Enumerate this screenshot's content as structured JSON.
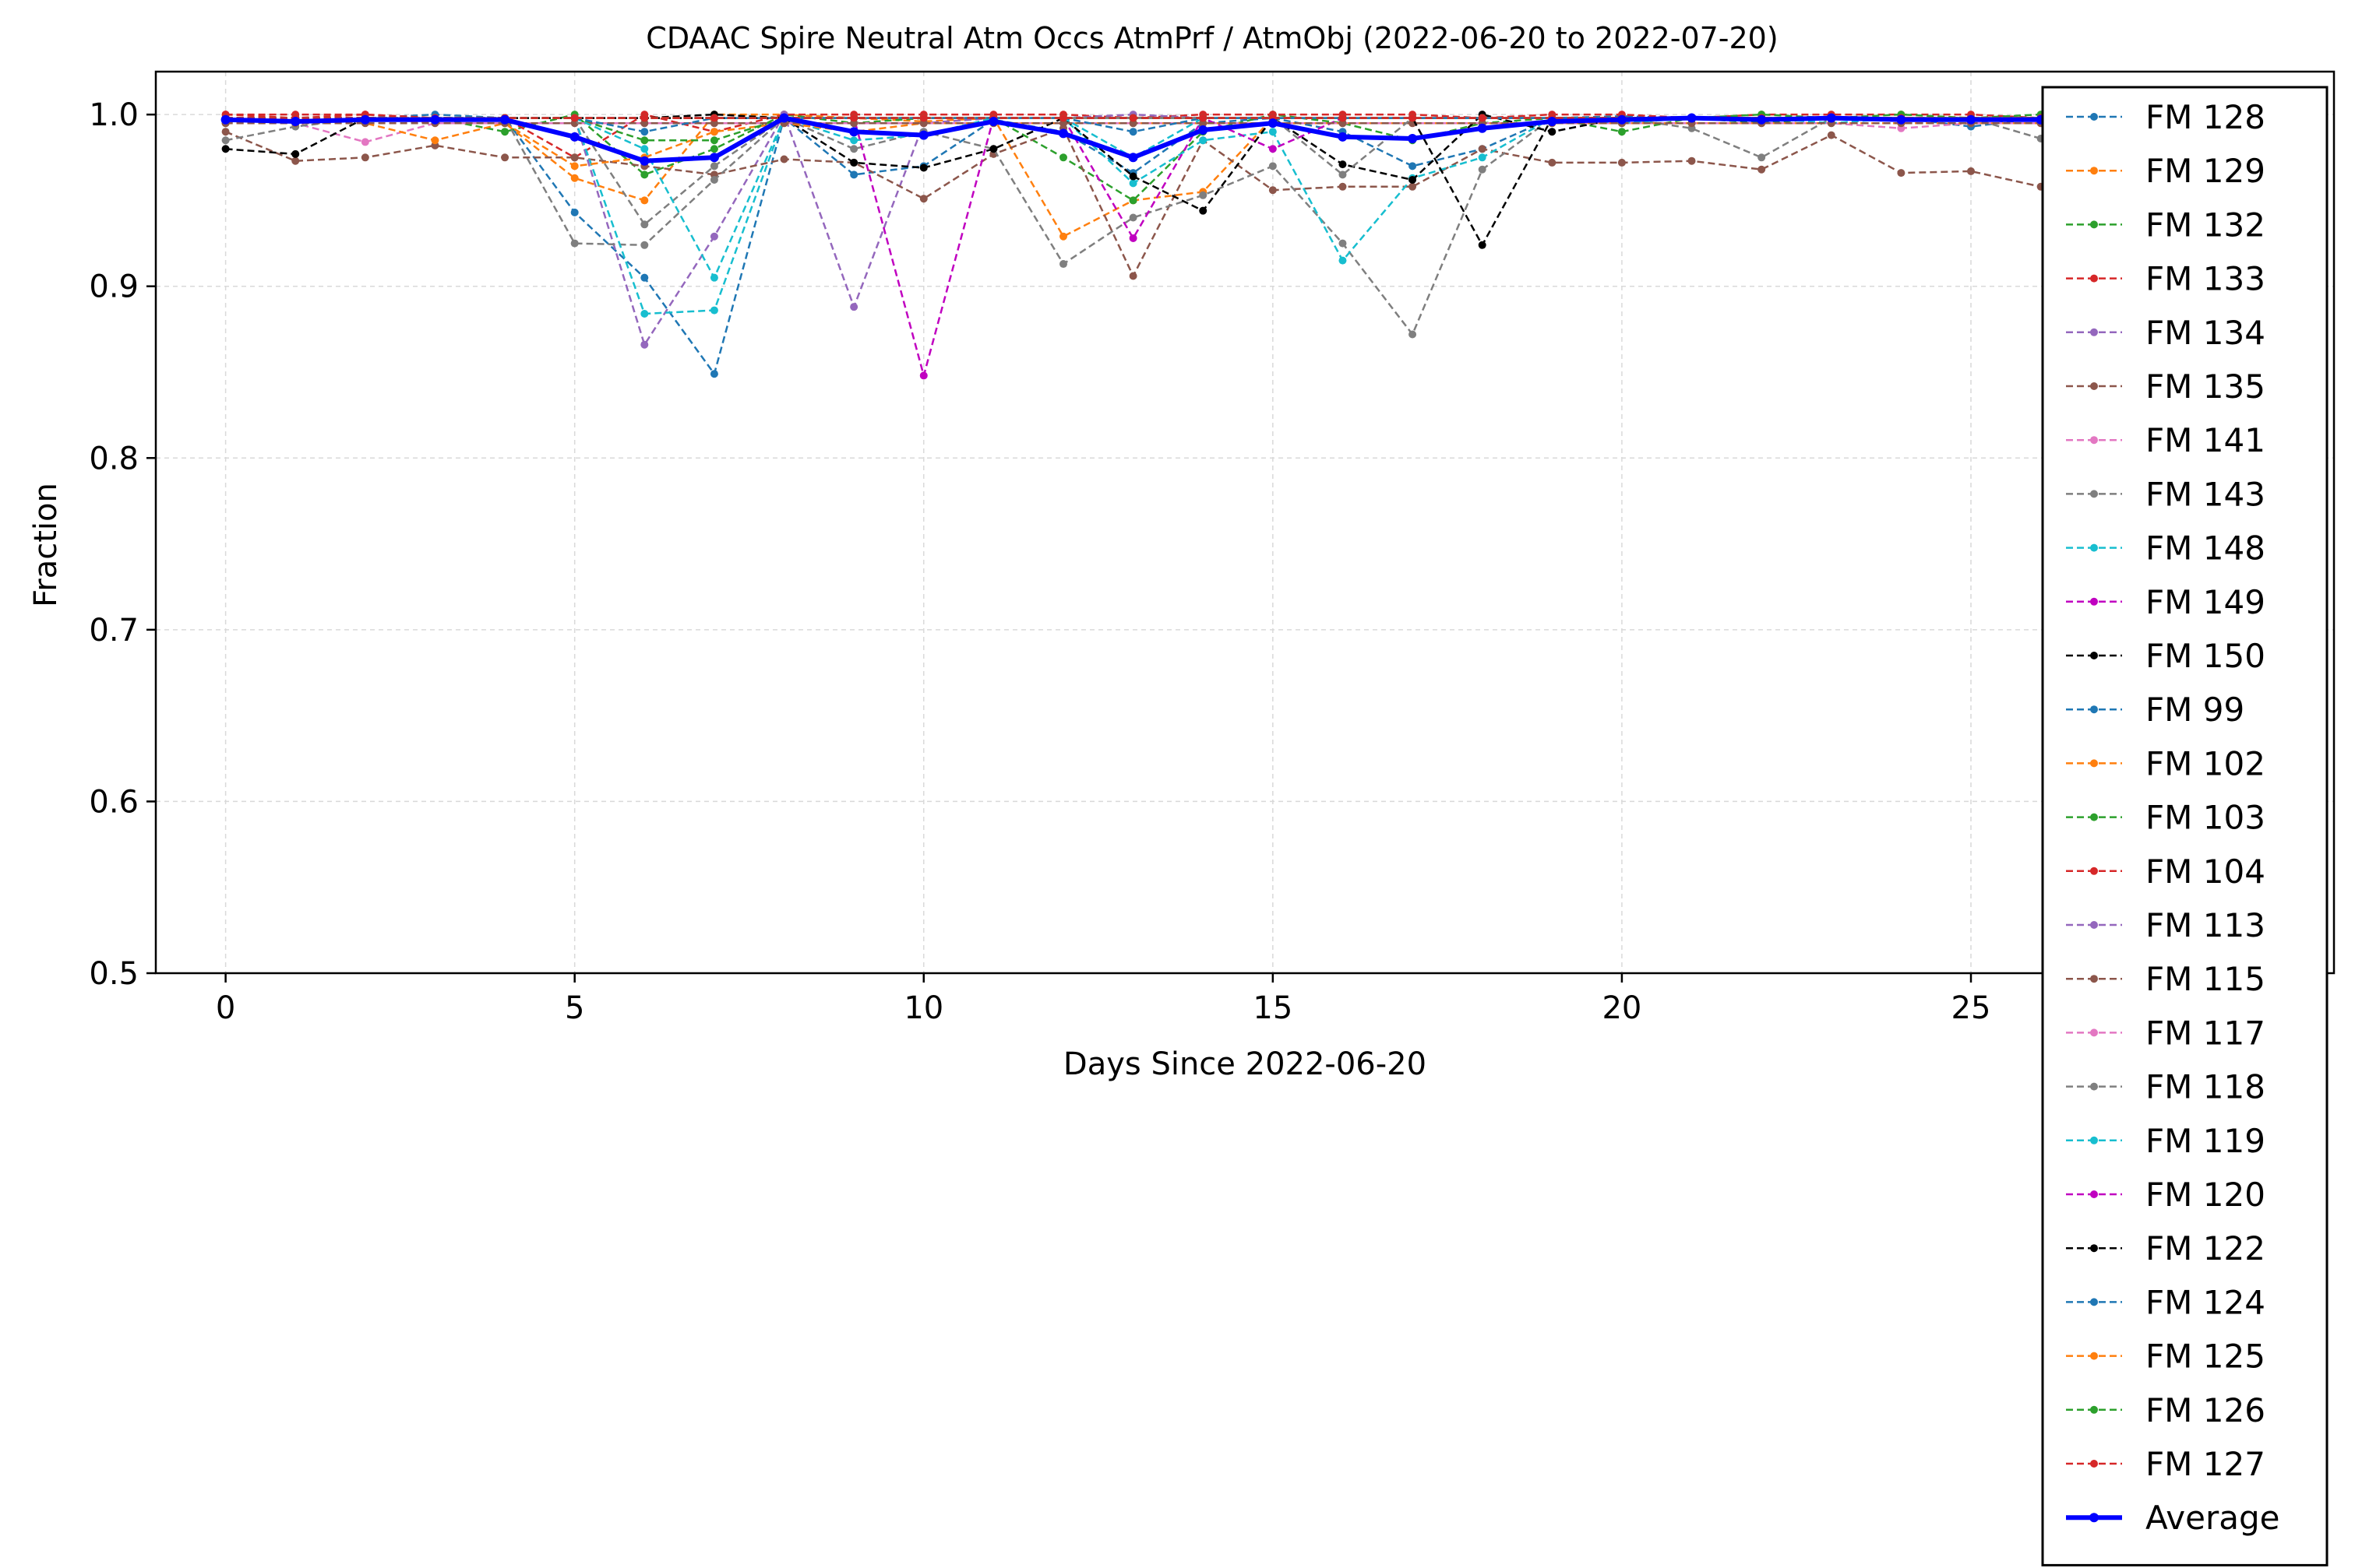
{
  "chart_data": {
    "type": "line",
    "title": "CDAAC Spire Neutral Atm Occs AtmPrf / AtmObj (2022-06-20 to 2022-07-20)",
    "xlabel": "Days Since 2022-06-20",
    "ylabel": "Fraction",
    "xlim": [
      -1,
      30.2
    ],
    "ylim": [
      0.5,
      1.025
    ],
    "xticks": [
      0,
      5,
      10,
      15,
      20,
      25
    ],
    "yticks": [
      0.5,
      0.6,
      0.7,
      0.8,
      0.9,
      1.0
    ],
    "ytick_labels": [
      "0.5",
      "0.6",
      "0.7",
      "0.8",
      "0.9",
      "1.0"
    ],
    "grid": true,
    "legend_position": "right, overlapping plot edge",
    "x": [
      0,
      1,
      2,
      3,
      4,
      5,
      6,
      7,
      8,
      9,
      10,
      11,
      12,
      13,
      14,
      15,
      16,
      17,
      18,
      19,
      20,
      21,
      22,
      23,
      24,
      25,
      26,
      27,
      28,
      29
    ],
    "series": [
      {
        "name": "FM 128",
        "color": "#1f77b4",
        "values": [
          0.995,
          0.995,
          0.998,
          1.0,
          0.998,
          0.943,
          0.905,
          0.849,
          0.998,
          0.965,
          0.97,
          0.997,
          0.99,
          0.966,
          0.995,
          0.998,
          0.99,
          0.97,
          0.98,
          0.998,
          0.999,
          0.998,
          0.998,
          0.998,
          0.998,
          0.993,
          0.998,
          0.998,
          0.998,
          0.998
        ]
      },
      {
        "name": "FM 129",
        "color": "#ff7f0e",
        "values": [
          0.998,
          0.996,
          0.998,
          0.995,
          0.995,
          0.963,
          0.95,
          1.0,
          1.0,
          0.998,
          0.996,
          0.998,
          0.929,
          0.95,
          0.955,
          0.998,
          0.998,
          0.998,
          0.998,
          0.998,
          0.998,
          0.998,
          0.998,
          0.998,
          0.998,
          0.998,
          0.998,
          0.998,
          0.998,
          0.998
        ]
      },
      {
        "name": "FM 132",
        "color": "#2ca02c",
        "values": [
          0.998,
          0.997,
          0.998,
          0.998,
          0.99,
          1.0,
          0.965,
          0.98,
          1.0,
          0.995,
          0.998,
          0.998,
          0.975,
          0.95,
          0.99,
          1.0,
          0.995,
          0.985,
          0.995,
          0.998,
          0.99,
          0.998,
          0.995,
          0.998,
          0.998,
          0.998,
          0.998,
          0.998,
          0.998,
          0.998
        ]
      },
      {
        "name": "FM 133",
        "color": "#d62728",
        "values": [
          1.0,
          1.0,
          1.0,
          0.998,
          0.998,
          0.975,
          1.0,
          0.99,
          1.0,
          1.0,
          1.0,
          1.0,
          1.0,
          0.998,
          1.0,
          1.0,
          1.0,
          1.0,
          0.998,
          1.0,
          1.0,
          0.998,
          1.0,
          1.0,
          1.0,
          1.0,
          0.998,
          0.998,
          0.998,
          0.998
        ]
      },
      {
        "name": "FM 134",
        "color": "#9467bd",
        "values": [
          0.998,
          0.998,
          0.998,
          0.998,
          0.998,
          0.998,
          0.866,
          0.929,
          1.0,
          0.888,
          0.995,
          0.998,
          0.998,
          1.0,
          0.998,
          0.998,
          0.998,
          0.998,
          0.998,
          0.998,
          0.998,
          0.998,
          0.998,
          0.998,
          0.998,
          0.998,
          0.998,
          0.998,
          0.998,
          0.998
        ]
      },
      {
        "name": "FM 135",
        "color": "#8c564b",
        "values": [
          0.99,
          0.973,
          0.975,
          0.982,
          0.975,
          0.975,
          0.97,
          0.965,
          0.974,
          0.972,
          0.951,
          0.977,
          0.992,
          0.906,
          0.985,
          0.956,
          0.958,
          0.958,
          0.98,
          0.972,
          0.972,
          0.973,
          0.968,
          0.988,
          0.966,
          0.967,
          0.958,
          0.957,
          0.957,
          0.957
        ]
      },
      {
        "name": "FM 141",
        "color": "#e377c2",
        "values": [
          0.995,
          0.995,
          0.984,
          0.995,
          0.995,
          0.995,
          0.995,
          0.995,
          0.995,
          0.995,
          0.995,
          0.995,
          0.995,
          0.995,
          0.995,
          0.995,
          0.995,
          0.995,
          0.995,
          0.995,
          0.995,
          0.995,
          0.995,
          0.995,
          0.992,
          0.995,
          0.995,
          0.995,
          0.995,
          0.995
        ]
      },
      {
        "name": "FM 143",
        "color": "#7f7f7f",
        "values": [
          0.985,
          0.993,
          0.998,
          0.998,
          0.998,
          0.925,
          0.924,
          0.962,
          0.998,
          0.98,
          0.99,
          0.98,
          0.913,
          0.94,
          0.953,
          0.97,
          0.925,
          0.872,
          0.968,
          0.998,
          0.998,
          0.992,
          0.975,
          0.998,
          0.998,
          0.998,
          0.986,
          0.987,
          0.987,
          0.987
        ]
      },
      {
        "name": "FM 148",
        "color": "#17becf",
        "values": [
          0.997,
          0.998,
          0.998,
          0.998,
          0.998,
          0.998,
          0.884,
          0.886,
          0.998,
          0.985,
          0.988,
          0.998,
          0.998,
          0.96,
          0.985,
          0.99,
          0.915,
          0.963,
          0.975,
          0.998,
          0.995,
          0.998,
          0.998,
          0.995,
          0.998,
          0.998,
          0.998,
          0.998,
          0.998,
          0.998
        ]
      },
      {
        "name": "FM 149",
        "color": "#c000c0",
        "values": [
          0.998,
          0.998,
          0.998,
          0.998,
          0.998,
          0.998,
          0.998,
          0.998,
          0.998,
          0.998,
          0.848,
          0.998,
          0.998,
          0.928,
          0.998,
          0.98,
          0.998,
          0.998,
          0.998,
          0.998,
          0.998,
          0.998,
          0.998,
          0.998,
          0.998,
          0.998,
          0.998,
          0.998,
          0.998,
          0.998
        ]
      },
      {
        "name": "FM 150",
        "color": "#000000",
        "values": [
          0.98,
          0.977,
          0.998,
          0.998,
          0.998,
          0.998,
          0.998,
          0.998,
          0.998,
          0.972,
          0.969,
          0.98,
          0.998,
          0.964,
          0.944,
          0.998,
          0.971,
          0.962,
          1.0,
          0.99,
          0.998,
          0.998,
          0.998,
          0.998,
          0.998,
          0.998,
          0.998,
          0.998,
          0.998,
          0.998
        ]
      },
      {
        "name": "FM 99",
        "color": "#1f77b4",
        "values": [
          0.998,
          0.998,
          0.998,
          0.998,
          0.998,
          0.998,
          0.998,
          0.998,
          0.998,
          0.998,
          0.998,
          0.998,
          0.998,
          0.998,
          0.998,
          0.998,
          0.998,
          0.998,
          0.998,
          0.998,
          0.998,
          0.998,
          0.998,
          0.998,
          0.998,
          0.998,
          0.998,
          0.998,
          0.998,
          0.998
        ]
      },
      {
        "name": "FM 102",
        "color": "#ff7f0e",
        "values": [
          0.995,
          0.995,
          0.995,
          0.985,
          0.995,
          0.97,
          0.975,
          0.99,
          0.995,
          0.99,
          0.995,
          0.995,
          0.995,
          0.995,
          0.995,
          0.995,
          0.995,
          0.995,
          0.995,
          0.995,
          0.995,
          0.995,
          0.995,
          0.995,
          0.995,
          0.995,
          0.995,
          0.995,
          0.995,
          0.995
        ]
      },
      {
        "name": "FM 103",
        "color": "#2ca02c",
        "values": [
          0.998,
          0.998,
          0.998,
          0.998,
          0.998,
          0.998,
          0.985,
          0.985,
          0.998,
          0.998,
          0.998,
          0.998,
          0.998,
          0.998,
          0.998,
          0.998,
          0.998,
          0.998,
          0.998,
          0.998,
          0.998,
          0.998,
          0.998,
          0.998,
          0.998,
          0.998,
          0.998,
          0.998,
          0.998,
          0.998
        ]
      },
      {
        "name": "FM 104",
        "color": "#d62728",
        "values": [
          1.0,
          0.998,
          1.0,
          0.998,
          0.998,
          0.998,
          0.998,
          0.998,
          0.998,
          0.998,
          0.998,
          0.998,
          0.998,
          0.998,
          0.998,
          0.998,
          0.998,
          0.998,
          0.998,
          0.998,
          0.998,
          0.998,
          0.998,
          0.998,
          0.998,
          0.998,
          0.998,
          0.998,
          0.998,
          0.998
        ]
      },
      {
        "name": "FM 113",
        "color": "#9467bd",
        "values": [
          0.998,
          0.998,
          0.998,
          0.998,
          0.998,
          0.998,
          0.998,
          0.998,
          0.998,
          0.998,
          0.998,
          0.998,
          0.998,
          0.998,
          0.998,
          0.998,
          0.998,
          0.998,
          0.998,
          0.998,
          0.998,
          0.998,
          0.998,
          0.998,
          0.998,
          0.998,
          0.998,
          0.998,
          0.998,
          0.998
        ]
      },
      {
        "name": "FM 115",
        "color": "#8c564b",
        "values": [
          0.995,
          0.995,
          0.995,
          0.995,
          0.995,
          0.995,
          0.995,
          0.995,
          0.995,
          0.995,
          0.995,
          0.995,
          0.995,
          0.995,
          0.995,
          0.995,
          0.995,
          0.995,
          0.995,
          0.995,
          0.995,
          0.995,
          0.995,
          0.995,
          0.995,
          0.995,
          0.995,
          0.995,
          0.995,
          0.995
        ]
      },
      {
        "name": "FM 117",
        "color": "#e377c2",
        "values": [
          0.998,
          0.998,
          0.998,
          0.998,
          0.998,
          0.998,
          0.998,
          0.998,
          0.998,
          0.998,
          0.998,
          0.998,
          0.998,
          0.998,
          0.998,
          0.998,
          0.998,
          0.998,
          0.998,
          0.998,
          0.998,
          0.998,
          0.998,
          0.998,
          0.998,
          0.998,
          0.998,
          0.998,
          0.998,
          0.998
        ]
      },
      {
        "name": "FM 118",
        "color": "#7f7f7f",
        "values": [
          0.998,
          0.998,
          0.998,
          0.998,
          0.998,
          0.998,
          0.936,
          0.97,
          0.998,
          0.998,
          0.998,
          0.998,
          0.998,
          0.998,
          0.998,
          0.998,
          0.965,
          0.998,
          0.998,
          0.998,
          0.998,
          0.998,
          0.998,
          0.998,
          0.998,
          0.998,
          0.998,
          0.998,
          0.998,
          0.998
        ]
      },
      {
        "name": "FM 119",
        "color": "#17becf",
        "values": [
          0.998,
          0.998,
          0.998,
          0.998,
          0.998,
          0.998,
          0.98,
          0.905,
          0.998,
          0.998,
          0.998,
          0.998,
          0.998,
          0.975,
          0.998,
          0.998,
          0.998,
          0.998,
          0.998,
          0.998,
          0.998,
          0.998,
          0.998,
          0.998,
          0.998,
          0.998,
          0.998,
          0.998,
          0.998,
          0.998
        ]
      },
      {
        "name": "FM 120",
        "color": "#c000c0",
        "values": [
          0.998,
          0.998,
          0.998,
          0.998,
          0.998,
          0.998,
          0.998,
          0.998,
          0.998,
          0.998,
          0.998,
          0.998,
          0.998,
          0.998,
          0.998,
          0.998,
          0.998,
          0.998,
          0.998,
          0.998,
          0.998,
          0.998,
          0.998,
          0.998,
          0.998,
          0.998,
          0.998,
          0.998,
          0.998,
          0.998
        ]
      },
      {
        "name": "FM 122",
        "color": "#000000",
        "values": [
          0.998,
          0.998,
          0.998,
          0.998,
          0.998,
          0.998,
          0.998,
          1.0,
          0.998,
          0.998,
          0.998,
          0.998,
          0.998,
          0.998,
          0.998,
          0.998,
          0.998,
          0.998,
          0.924,
          0.998,
          0.998,
          0.998,
          0.998,
          0.998,
          0.998,
          0.998,
          0.998,
          0.998,
          0.998,
          0.998
        ]
      },
      {
        "name": "FM 124",
        "color": "#1f77b4",
        "values": [
          0.998,
          0.998,
          0.998,
          0.998,
          0.998,
          0.998,
          0.99,
          0.998,
          0.998,
          0.998,
          0.998,
          0.998,
          0.998,
          0.99,
          0.998,
          0.998,
          0.998,
          0.998,
          0.998,
          0.998,
          0.998,
          0.998,
          0.998,
          0.998,
          0.998,
          0.998,
          0.998,
          0.998,
          0.998,
          0.998
        ]
      },
      {
        "name": "FM 125",
        "color": "#ff7f0e",
        "values": [
          0.998,
          0.998,
          0.998,
          0.998,
          0.998,
          0.998,
          0.998,
          0.998,
          0.998,
          0.998,
          0.998,
          0.998,
          0.998,
          0.998,
          0.998,
          0.998,
          0.998,
          0.998,
          0.998,
          0.998,
          0.998,
          0.998,
          0.998,
          0.998,
          0.998,
          0.998,
          0.998,
          0.998,
          0.998,
          0.998
        ]
      },
      {
        "name": "FM 126",
        "color": "#2ca02c",
        "values": [
          0.998,
          0.998,
          0.998,
          0.998,
          0.998,
          0.998,
          0.998,
          0.998,
          0.998,
          0.998,
          0.998,
          0.998,
          0.998,
          0.998,
          0.998,
          0.998,
          0.998,
          0.998,
          0.998,
          0.998,
          0.998,
          0.998,
          1.0,
          0.998,
          1.0,
          0.998,
          1.0,
          0.998,
          0.998,
          0.998
        ]
      },
      {
        "name": "FM 127",
        "color": "#d62728",
        "values": [
          0.998,
          0.998,
          0.998,
          0.998,
          0.998,
          0.998,
          0.998,
          0.998,
          0.998,
          0.998,
          0.998,
          0.998,
          0.998,
          0.998,
          0.998,
          0.998,
          0.998,
          0.998,
          0.998,
          0.998,
          0.998,
          0.998,
          0.998,
          0.998,
          0.998,
          0.998,
          0.998,
          0.998,
          0.998,
          0.998
        ]
      }
    ],
    "average": {
      "name": "Average",
      "color": "#0000ff",
      "values": [
        0.997,
        0.996,
        0.997,
        0.997,
        0.997,
        0.987,
        0.973,
        0.975,
        0.998,
        0.99,
        0.988,
        0.996,
        0.989,
        0.975,
        0.991,
        0.995,
        0.987,
        0.986,
        0.992,
        0.996,
        0.997,
        0.998,
        0.997,
        0.998,
        0.997,
        0.997,
        0.997,
        0.997,
        0.997,
        0.997
      ]
    }
  }
}
